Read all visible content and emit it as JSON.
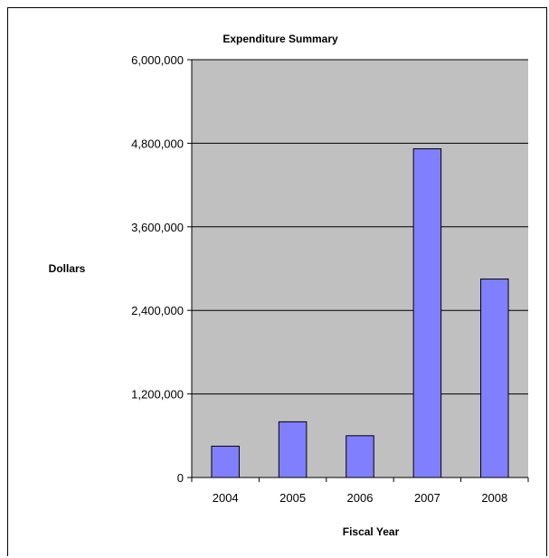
{
  "chart_data": {
    "type": "bar",
    "title": "Expenditure Summary",
    "xlabel": "Fiscal Year",
    "ylabel": "Dollars",
    "categories": [
      "2004",
      "2005",
      "2006",
      "2007",
      "2008"
    ],
    "values": [
      450000,
      800000,
      600000,
      4720000,
      2850000
    ],
    "ylim": [
      0,
      6000000
    ],
    "yticks": [
      0,
      1200000,
      2400000,
      3600000,
      4800000,
      6000000
    ],
    "ytick_labels": [
      "0",
      "1,200,000",
      "2,400,000",
      "3,600,000",
      "4,800,000",
      "6,000,000"
    ],
    "grid": true,
    "legend": "none",
    "colors": {
      "bar_fill": "#8080ff",
      "bar_stroke": "#000000",
      "plot_background": "#c0c0c0",
      "gridline": "#000000"
    }
  }
}
